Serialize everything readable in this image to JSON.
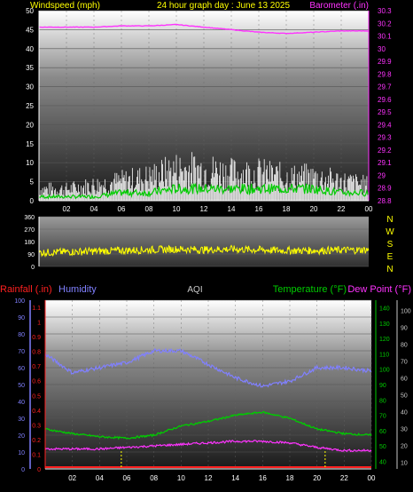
{
  "header": {
    "windspeed_label": "Windspeed (mph)",
    "title": "24 hour graph day : June 13 2025",
    "barometer_label": "Barometer (.in)"
  },
  "direction_letters": [
    "N",
    "W",
    "S",
    "E",
    "N"
  ],
  "bottom_header": {
    "rainfall_label": "Rainfall (.in)",
    "humidity_label": "Humidity",
    "aqi_label": "AQI",
    "temperature_label": "Temperature (°F)",
    "dewpoint_label": "Dew Point (°F)"
  },
  "colors": {
    "wind_gust": "#ffffff",
    "wind_avg": "#00cc00",
    "barometer": "#ff33ff",
    "direction": "#ffff00",
    "humidity": "#8080ff",
    "temperature": "#00cc00",
    "dewpoint": "#ff33ff",
    "rainfall": "#ff2020",
    "header": "#ffff00"
  },
  "chart_data": [
    {
      "type": "line",
      "x": [
        0,
        2,
        4,
        6,
        8,
        10,
        12,
        14,
        16,
        18,
        20,
        22,
        24
      ],
      "xticklabels": [
        "02",
        "04",
        "06",
        "08",
        "10",
        "12",
        "14",
        "16",
        "18",
        "20",
        "22",
        "00"
      ],
      "y_left_ticks": [
        0,
        5,
        10,
        15,
        20,
        25,
        30,
        35,
        40,
        45,
        50
      ],
      "y_right_ticks": [
        "28.8",
        "28.9",
        "29",
        "29.1",
        "29.2",
        "29.3",
        "29.4",
        "29.5",
        "29.6",
        "29.7",
        "29.8",
        "29.9",
        "30",
        "30.1",
        "30.2",
        "30.3"
      ],
      "ylim_left": [
        0,
        50
      ],
      "ylim_right": [
        28.8,
        30.3
      ],
      "series": [
        {
          "values": [
            3,
            3,
            4,
            5,
            6,
            8,
            8,
            7,
            7,
            6,
            6,
            5,
            4
          ]
        },
        {
          "values": [
            1,
            1,
            1,
            2,
            2,
            3,
            3,
            3,
            3,
            3,
            3,
            2,
            2
          ]
        },
        {
          "values": [
            30.17,
            30.17,
            30.17,
            30.18,
            30.18,
            30.19,
            30.17,
            30.15,
            30.13,
            30.12,
            30.13,
            30.14,
            30.14
          ]
        }
      ]
    },
    {
      "type": "line",
      "x": [
        0,
        2,
        4,
        6,
        8,
        10,
        12,
        14,
        16,
        18,
        20,
        22,
        24
      ],
      "y_ticks": [
        0,
        90,
        180,
        270,
        360
      ],
      "ylim": [
        0,
        360
      ],
      "series": [
        {
          "values": [
            100,
            105,
            110,
            115,
            120,
            125,
            120,
            125,
            120,
            115,
            115,
            118,
            120
          ]
        }
      ]
    },
    {
      "type": "line",
      "x": [
        0,
        2,
        4,
        6,
        8,
        10,
        12,
        14,
        16,
        18,
        20,
        22,
        24
      ],
      "y_humidity_ticks": [
        0,
        10,
        20,
        30,
        40,
        50,
        60,
        70,
        80,
        90,
        100
      ],
      "y_rain_ticks": [
        "0",
        "0.1",
        "0.2",
        "0.3",
        "0.4",
        "0.5",
        "0.6",
        "0.7",
        "0.8",
        "0.9",
        "1",
        "1.1"
      ],
      "y_temp_ticks": [
        40,
        50,
        60,
        70,
        80,
        90,
        100,
        110,
        120,
        130,
        140
      ],
      "y_dew_ticks": [
        10,
        20,
        30,
        40,
        50,
        60,
        70,
        80,
        90,
        100
      ],
      "ylim_humidity": [
        0,
        100
      ],
      "ylim_temperature": [
        35,
        145
      ],
      "series": [
        {
          "values": [
            68,
            57,
            60,
            63,
            70,
            70,
            62,
            54,
            49,
            52,
            60,
            60,
            58
          ]
        },
        {
          "values": [
            61,
            58,
            56,
            55,
            57,
            63,
            66,
            70,
            72,
            68,
            61,
            58,
            57
          ]
        },
        {
          "values": [
            48,
            48,
            48,
            49,
            50,
            51,
            52,
            53,
            53,
            52,
            49,
            47,
            47
          ]
        },
        {
          "values": [
            0,
            0,
            0,
            0,
            0,
            0,
            0,
            0,
            0,
            0,
            0,
            0,
            0
          ]
        }
      ]
    }
  ]
}
